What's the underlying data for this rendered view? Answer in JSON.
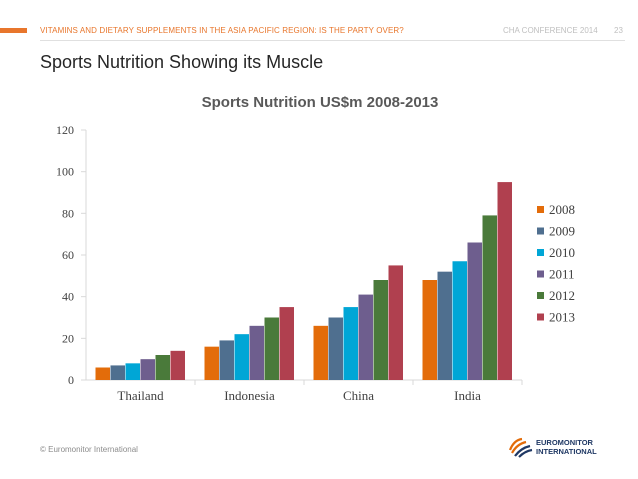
{
  "header": {
    "subtitle": "VITAMINS AND DIETARY SUPPLEMENTS IN THE ASIA PACIFIC REGION: IS THE PARTY OVER?",
    "conference": "CHA CONFERENCE 2014",
    "page_number": "23"
  },
  "slide_title": "Sports Nutrition Showing its Muscle",
  "footer": "© Euromonitor International",
  "logo": {
    "line1": "EUROMONITOR",
    "line2": "INTERNATIONAL"
  },
  "colors": {
    "2008": "#e36c0a",
    "2009": "#4f6f8f",
    "2010": "#00a6d6",
    "2011": "#6e5e8e",
    "2012": "#4a7a3a",
    "2013": "#b0404f"
  },
  "chart_data": {
    "type": "bar",
    "title": "Sports Nutrition US$m 2008-2013",
    "xlabel": "",
    "ylabel": "",
    "ylim": [
      0,
      120
    ],
    "yticks": [
      0,
      20,
      40,
      60,
      80,
      100,
      120
    ],
    "categories": [
      "Thailand",
      "Indonesia",
      "China",
      "India"
    ],
    "series": [
      {
        "name": "2008",
        "values": [
          6,
          16,
          26,
          48
        ]
      },
      {
        "name": "2009",
        "values": [
          7,
          19,
          30,
          52
        ]
      },
      {
        "name": "2010",
        "values": [
          8,
          22,
          35,
          57
        ]
      },
      {
        "name": "2011",
        "values": [
          10,
          26,
          41,
          66
        ]
      },
      {
        "name": "2012",
        "values": [
          12,
          30,
          48,
          79
        ]
      },
      {
        "name": "2013",
        "values": [
          14,
          35,
          55,
          95
        ]
      }
    ],
    "legend_position": "right",
    "grid": false
  }
}
